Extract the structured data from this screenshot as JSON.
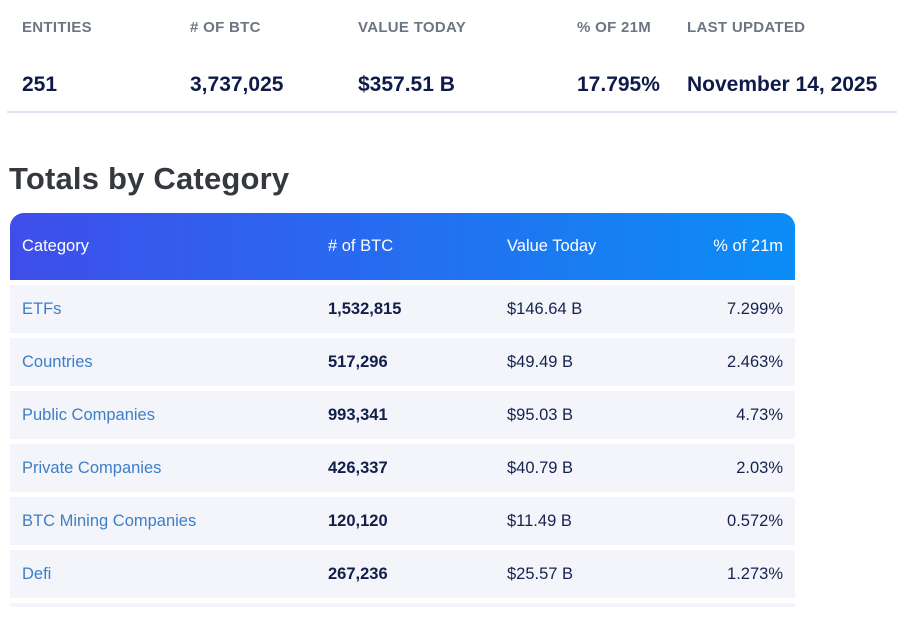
{
  "stats": {
    "columns": [
      {
        "label": "ENTITIES",
        "value": "251"
      },
      {
        "label": "# OF BTC",
        "value": "3,737,025"
      },
      {
        "label": "VALUE TODAY",
        "value": "$357.51 B"
      },
      {
        "label": "% OF 21M",
        "value": "17.795%"
      },
      {
        "label": "LAST UPDATED",
        "value": "November 14, 2025"
      }
    ]
  },
  "section": {
    "title": "Totals by Category"
  },
  "table": {
    "headers": [
      "Category",
      "# of BTC",
      "Value Today",
      "% of 21m"
    ],
    "rows": [
      {
        "category": "ETFs",
        "btc": "1,532,815",
        "value": "$146.64 B",
        "pct": "7.299%"
      },
      {
        "category": "Countries",
        "btc": "517,296",
        "value": "$49.49 B",
        "pct": "2.463%"
      },
      {
        "category": "Public Companies",
        "btc": "993,341",
        "value": "$95.03 B",
        "pct": "4.73%"
      },
      {
        "category": "Private Companies",
        "btc": "426,337",
        "value": "$40.79 B",
        "pct": "2.03%"
      },
      {
        "category": "BTC Mining Companies",
        "btc": "120,120",
        "value": "$11.49 B",
        "pct": "0.572%"
      },
      {
        "category": "Defi",
        "btc": "267,236",
        "value": "$25.57 B",
        "pct": "1.273%"
      }
    ]
  },
  "colors": {
    "header_gradient_start": "#3f4eea",
    "header_gradient_end": "#0b8df6",
    "link_blue": "#3d7ec7",
    "row_background": "#f3f5fb",
    "value_navy": "#0e1b4a",
    "label_gray": "#6e7582",
    "divider": "#dfe4f2"
  }
}
